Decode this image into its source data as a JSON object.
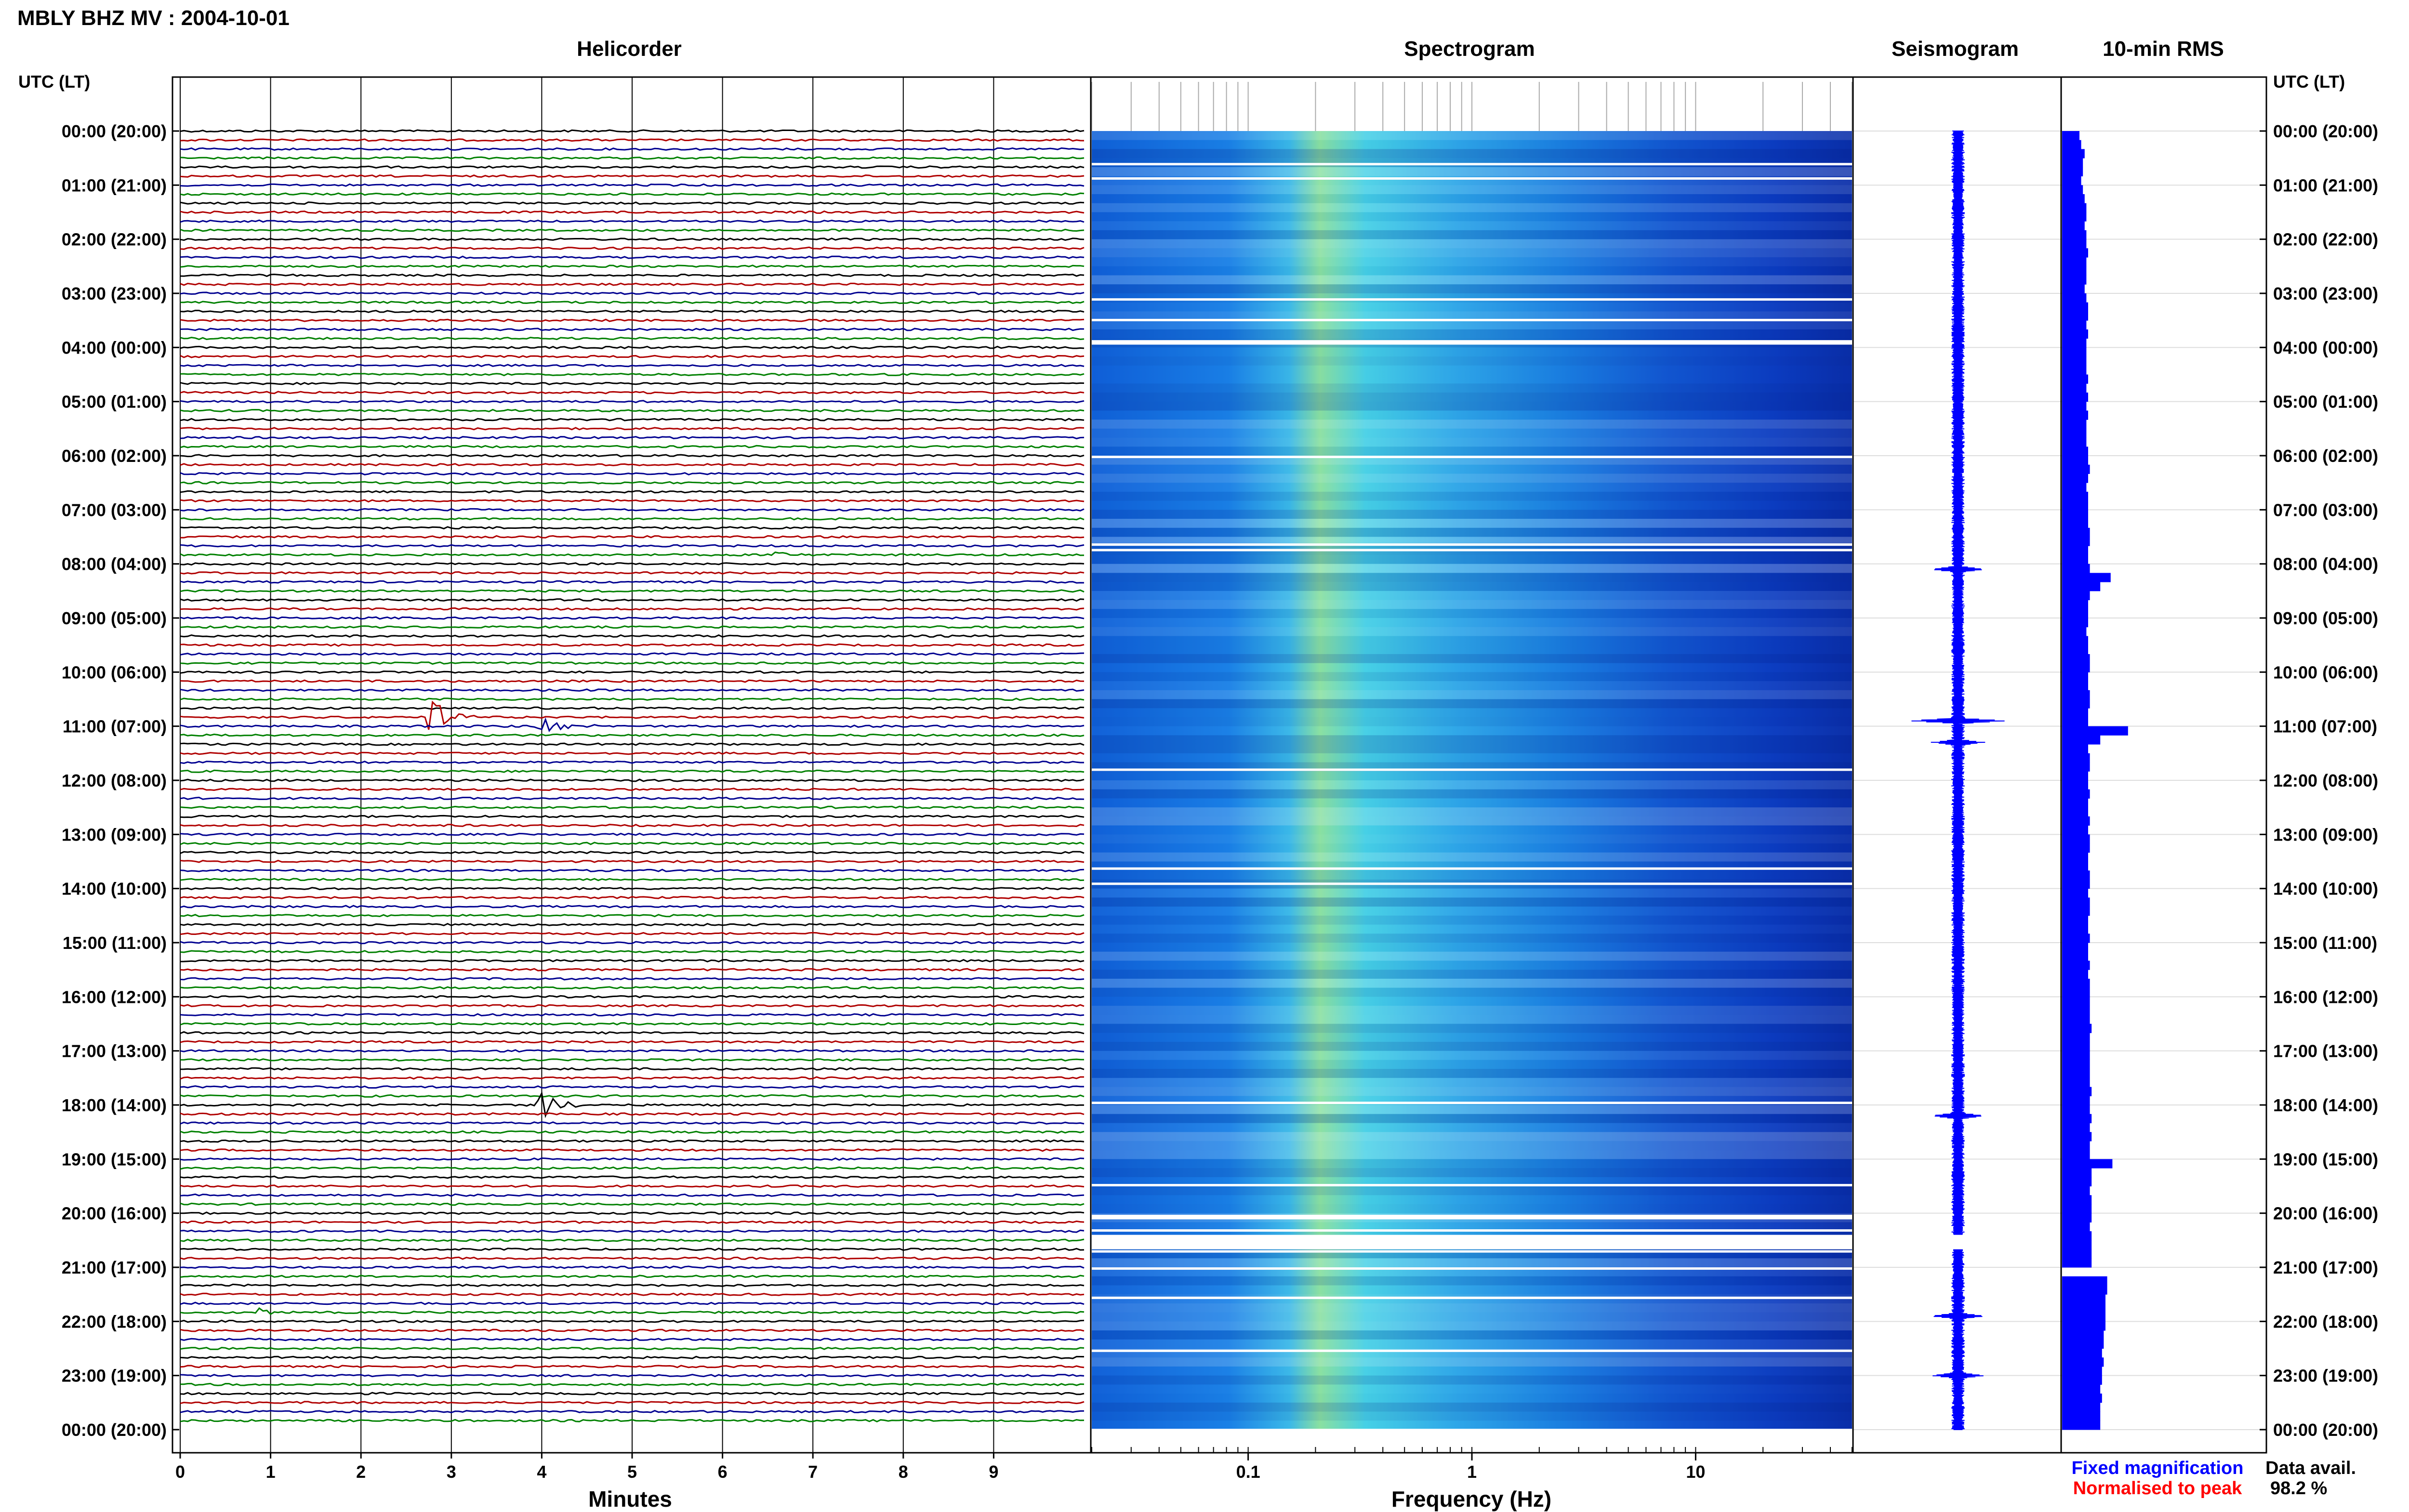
{
  "header": {
    "title": "MBLY BHZ MV : 2004-10-01",
    "utc_label_left": "UTC (LT)",
    "utc_label_right": "UTC (LT)"
  },
  "panels": {
    "helicorder": "Helicorder",
    "spectrogram": "Spectrogram",
    "seismogram": "Seismogram",
    "rms": "10-min RMS"
  },
  "time_labels": [
    "00:00 (20:00)",
    "01:00 (21:00)",
    "02:00 (22:00)",
    "03:00 (23:00)",
    "04:00 (00:00)",
    "05:00 (01:00)",
    "06:00 (02:00)",
    "07:00 (03:00)",
    "08:00 (04:00)",
    "09:00 (05:00)",
    "10:00 (06:00)",
    "11:00 (07:00)",
    "12:00 (08:00)",
    "13:00 (09:00)",
    "14:00 (10:00)",
    "15:00 (11:00)",
    "16:00 (12:00)",
    "17:00 (13:00)",
    "18:00 (14:00)",
    "19:00 (15:00)",
    "20:00 (16:00)",
    "21:00 (17:00)",
    "22:00 (18:00)",
    "23:00 (19:00)",
    "00:00 (20:00)"
  ],
  "footer": {
    "minutes_label": "Minutes",
    "frequency_label": "Frequency (Hz)",
    "fixed_magnification": "Fixed magnification",
    "normalised_to_peak": "Normalised to peak",
    "data_avail_label": "Data avail.",
    "data_avail_value": "98.2 %"
  },
  "colors": {
    "trace_cycle": [
      "#000000",
      "#b00000",
      "#000090",
      "#008000"
    ],
    "fixed_magnification": "#0000ff",
    "normalised_to_peak": "#ff0000",
    "seismogram": "#0000ff",
    "rms": "#0000ff"
  },
  "chart_data": [
    {
      "type": "line",
      "name": "helicorder",
      "title": "Helicorder",
      "xlabel": "Minutes",
      "xlim": [
        0,
        10
      ],
      "xticks": [
        "0",
        "1",
        "2",
        "3",
        "4",
        "5",
        "6",
        "7",
        "8",
        "9"
      ],
      "rows_per_hour": 6,
      "hours": 24,
      "events": [
        {
          "hour": 10,
          "row": 5,
          "minute": 2.8,
          "amplitude": 3.2
        },
        {
          "hour": 11,
          "row": 0,
          "minute": 4.0,
          "amplitude": 1.8
        },
        {
          "hour": 18,
          "row": 0,
          "minute": 4.0,
          "amplitude": 2.4
        },
        {
          "hour": 7,
          "row": 5,
          "minute": 6.6,
          "amplitude": 0.8
        },
        {
          "hour": 21,
          "row": 5,
          "minute": 0.8,
          "amplitude": 0.9
        }
      ]
    },
    {
      "type": "heatmap",
      "name": "spectrogram",
      "title": "Spectrogram",
      "xlabel": "Frequency (Hz)",
      "xscale": "log",
      "xlim": [
        0.02,
        50
      ],
      "xticks": [
        "0.1",
        "1",
        "10"
      ],
      "gap_hours": [
        20.4
      ]
    },
    {
      "type": "line",
      "name": "seismogram",
      "title": "Seismogram",
      "events_hour": [
        8.1,
        10.9,
        11.3,
        18.2,
        21.9,
        23.0
      ]
    },
    {
      "type": "bar",
      "name": "rms",
      "title": "10-min RMS",
      "values": [
        1.0,
        1.1,
        1.3,
        1.2,
        1.2,
        1.1,
        1.2,
        1.3,
        1.4,
        1.4,
        1.3,
        1.4,
        1.4,
        1.5,
        1.4,
        1.4,
        1.4,
        1.3,
        1.4,
        1.5,
        1.5,
        1.4,
        1.5,
        1.4,
        1.4,
        1.4,
        1.4,
        1.5,
        1.4,
        1.5,
        1.4,
        1.5,
        1.4,
        1.4,
        1.4,
        1.5,
        1.5,
        1.6,
        1.5,
        1.4,
        1.5,
        1.5,
        1.5,
        1.5,
        1.6,
        1.6,
        1.5,
        1.5,
        1.6,
        2.8,
        2.2,
        1.6,
        1.5,
        1.5,
        1.5,
        1.4,
        1.5,
        1.5,
        1.6,
        1.6,
        1.5,
        1.5,
        1.6,
        1.6,
        1.5,
        1.5,
        3.8,
        2.2,
        1.5,
        1.6,
        1.6,
        1.5,
        1.5,
        1.6,
        1.5,
        1.5,
        1.6,
        1.5,
        1.6,
        1.6,
        1.5,
        1.5,
        1.6,
        1.6,
        1.5,
        1.6,
        1.6,
        1.5,
        1.5,
        1.6,
        1.5,
        1.5,
        1.6,
        1.5,
        1.6,
        1.6,
        1.6,
        1.6,
        1.6,
        1.7,
        1.6,
        1.6,
        1.6,
        1.6,
        1.6,
        1.6,
        1.7,
        1.6,
        1.6,
        1.7,
        1.6,
        1.7,
        1.6,
        1.6,
        2.9,
        1.7,
        1.7,
        1.6,
        1.7,
        1.7,
        1.7,
        1.6,
        1.7,
        1.7,
        1.7,
        1.7,
        0,
        2.6,
        2.6,
        2.5,
        2.5,
        2.5,
        2.5,
        2.4,
        2.4,
        2.3,
        2.4,
        2.3,
        2.3,
        2.2,
        2.3,
        2.2,
        2.2,
        2.2
      ]
    }
  ]
}
